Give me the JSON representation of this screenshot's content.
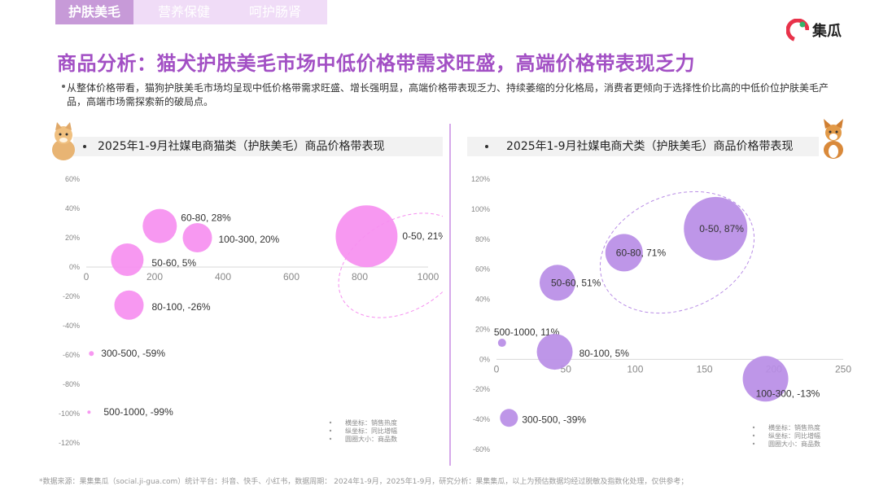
{
  "tabs": [
    {
      "label": "护肤美毛",
      "active": true
    },
    {
      "label": "营养保健",
      "active": false
    },
    {
      "label": "呵护肠肾",
      "active": false
    }
  ],
  "logo": {
    "text": "集瓜"
  },
  "headline": "商品分析：猫犬护肤美毛市场中低价格带需求旺盛，高端价格带表现乏力",
  "summary": "从整体价格带看，猫狗护肤美毛市场均呈现中低价格带需求旺盛、增长强明显，高端价格带表现乏力、持续萎缩的分化格局，消费者更倾向于选择性价比高的中低价位护肤美毛产品，高端市场需探索新的破局点。",
  "footnote": "*数据来源：果集集瓜（social.ji-gua.com）统计平台：抖音、快手、小红书，数据周期： 2024年1-9月，2025年1-9月，研究分析：果集集瓜，以上为预估数据均经过脱敏及指数化处理，仅供参考；",
  "colors": {
    "accent": "#a24fc4",
    "cat_bubble": "#f68ff0",
    "dog_bubble": "#b98de6"
  },
  "chart_data": [
    {
      "type": "scatter",
      "title": "2025年1-9月社媒电商猫类（护肤美毛）商品价格带表现",
      "x_ticks": [
        "0",
        "200",
        "400",
        "600",
        "800",
        "1000"
      ],
      "y_ticks": [
        "60%",
        "40%",
        "20%",
        "0%",
        "-20%",
        "-40%",
        "-60%",
        "-80%",
        "-100%",
        "-120%"
      ],
      "xlim": [
        0,
        1000
      ],
      "ylim": [
        -120,
        60
      ],
      "legend": [
        "横坐标：销售热度",
        "纵坐标：同比增幅",
        "圆圈大小：商品数"
      ],
      "points": [
        {
          "label": "0-50, 21%",
          "x": 820,
          "y": 21,
          "size": 38
        },
        {
          "label": "60-80, 28%",
          "x": 215,
          "y": 28,
          "size": 21
        },
        {
          "label": "100-300, 20%",
          "x": 325,
          "y": 20,
          "size": 18
        },
        {
          "label": "50-60, 5%",
          "x": 120,
          "y": 5,
          "size": 20
        },
        {
          "label": "80-100, -26%",
          "x": 125,
          "y": -26,
          "size": 18
        },
        {
          "label": "300-500, -59%",
          "x": 15,
          "y": -59,
          "size": 3
        },
        {
          "label": "500-1000, -99%",
          "x": 8,
          "y": -99,
          "size": 1
        }
      ]
    },
    {
      "type": "scatter",
      "title": "2025年1-9月社媒电商犬类（护肤美毛）商品价格带表现",
      "x_ticks": [
        "0",
        "50",
        "100",
        "150",
        "200",
        "250"
      ],
      "y_ticks": [
        "120%",
        "100%",
        "80%",
        "60%",
        "40%",
        "20%",
        "0%",
        "-20%",
        "-40%",
        "-60%"
      ],
      "xlim": [
        0,
        250
      ],
      "ylim": [
        -60,
        120
      ],
      "legend": [
        "横坐标：销售热度",
        "纵坐标：同比增幅",
        "圆圈大小：商品数"
      ],
      "points": [
        {
          "label": "0-50, 87%",
          "x": 158,
          "y": 87,
          "size": 39
        },
        {
          "label": "60-80, 71%",
          "x": 92,
          "y": 71,
          "size": 23
        },
        {
          "label": "50-60, 51%",
          "x": 44,
          "y": 51,
          "size": 22
        },
        {
          "label": "500-1000, 11%",
          "x": 4,
          "y": 11,
          "size": 5
        },
        {
          "label": "80-100, 5%",
          "x": 42,
          "y": 5,
          "size": 22
        },
        {
          "label": "100-300, -13%",
          "x": 194,
          "y": -13,
          "size": 28
        },
        {
          "label": "300-500, -39%",
          "x": 9,
          "y": -39,
          "size": 11
        }
      ]
    }
  ]
}
